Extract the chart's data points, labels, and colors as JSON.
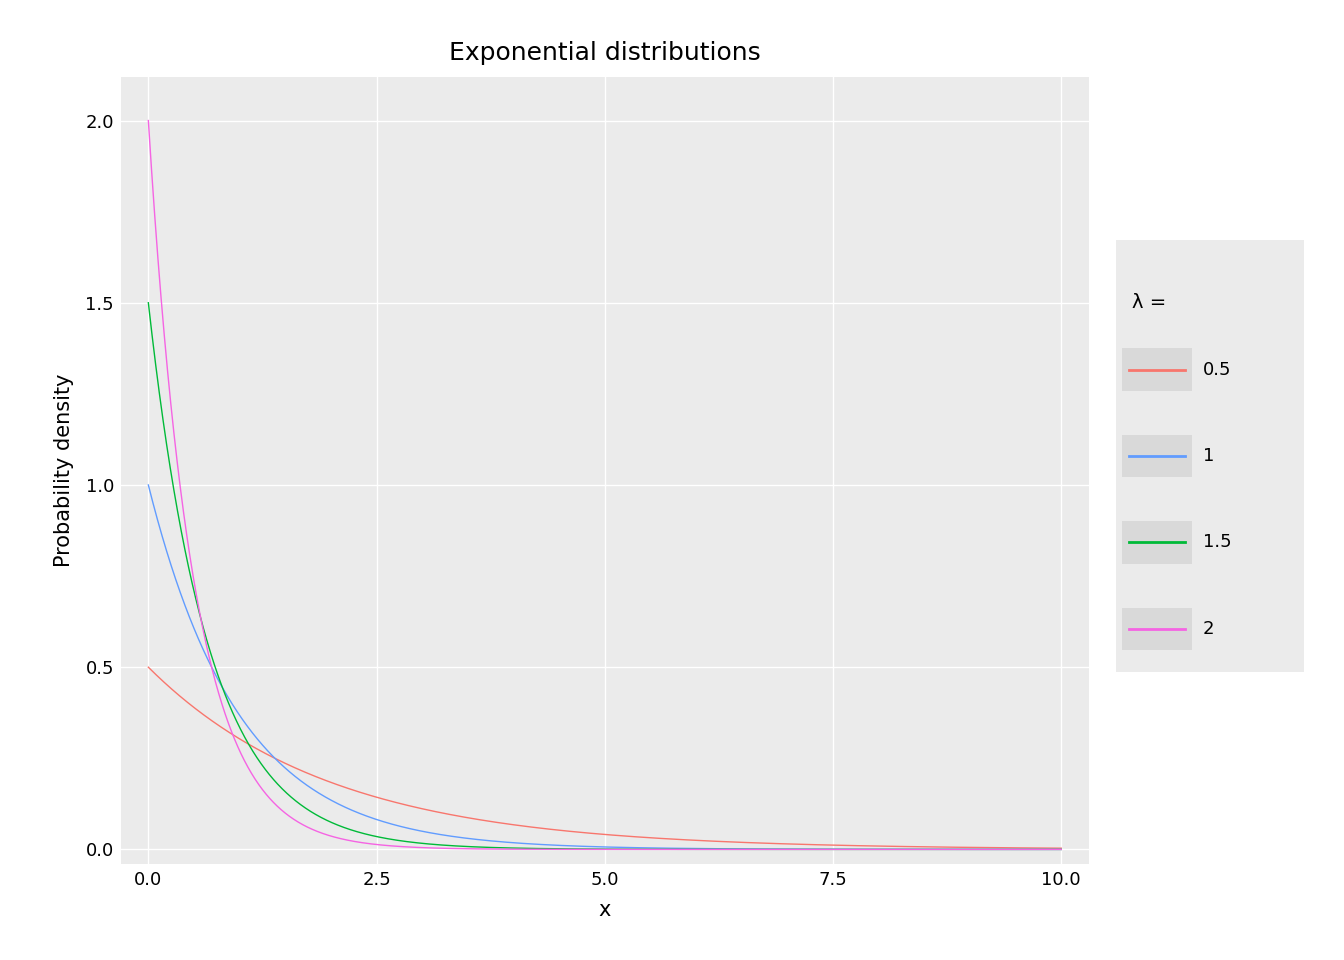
{
  "title": "Exponential distributions",
  "xlabel": "x",
  "ylabel": "Probability density",
  "xlim": [
    -0.3,
    10.3
  ],
  "ylim": [
    -0.04,
    2.12
  ],
  "x_ticks": [
    0.0,
    2.5,
    5.0,
    7.5,
    10.0
  ],
  "y_ticks": [
    0.0,
    0.5,
    1.0,
    1.5,
    2.0
  ],
  "lambdas": [
    0.5,
    1,
    1.5,
    2
  ],
  "lambda_labels": [
    "0.5",
    "1",
    "1.5",
    "2"
  ],
  "colors": [
    "#F8766D",
    "#619CFF",
    "#00BA38",
    "#F564E3"
  ],
  "background_color": "#EBEBEB",
  "panel_color": "#EBEBEB",
  "grid_color": "#FFFFFF",
  "legend_title": "λ =",
  "title_fontsize": 18,
  "axis_label_fontsize": 15,
  "tick_fontsize": 13,
  "legend_fontsize": 13,
  "legend_title_fontsize": 14,
  "line_width": 1.0,
  "x_start": 0.0,
  "x_end": 10.0,
  "n_points": 2000
}
